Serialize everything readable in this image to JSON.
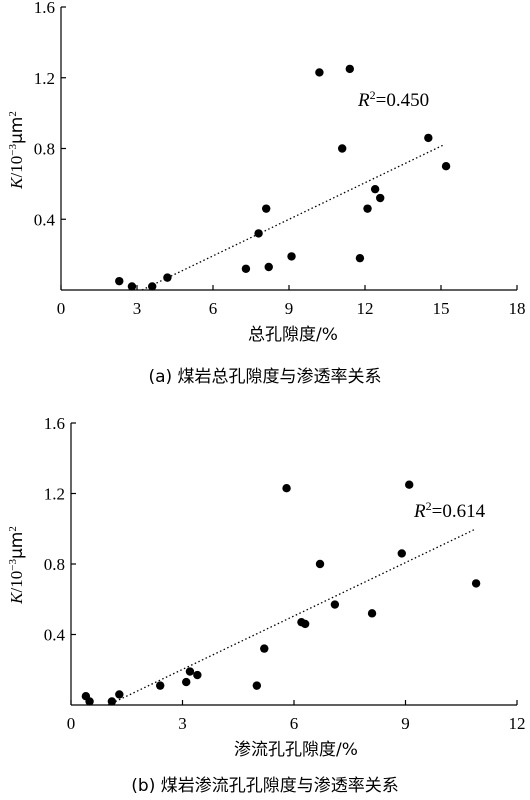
{
  "chart_data": [
    {
      "type": "scatter",
      "title": "",
      "caption": "(a)  煤岩总孔隙度与渗透率关系",
      "xlabel": "总孔隙度/%",
      "ylabel_main": "K",
      "ylabel_unit": "/10",
      "ylabel_exp": "−3",
      "ylabel_unit2": "μm",
      "ylabel_exp2": "2",
      "xlim": [
        0,
        18
      ],
      "ylim": [
        0,
        1.6
      ],
      "xticks": [
        "0",
        "3",
        "6",
        "9",
        "12",
        "15",
        "18"
      ],
      "xtick_values": [
        0,
        3,
        6,
        9,
        12,
        15,
        18
      ],
      "yticks": [
        "0.4",
        "0.8",
        "1.2",
        "1.6"
      ],
      "ytick_values": [
        0.4,
        0.8,
        1.2,
        1.6
      ],
      "r2_prefix": "R",
      "r2_exp": "2",
      "r2_value": "=0.450",
      "trendline": {
        "x": [
          3.2,
          15.1
        ],
        "y": [
          0.0,
          0.82
        ]
      },
      "points": [
        {
          "x": 2.3,
          "y": 0.05
        },
        {
          "x": 2.8,
          "y": 0.02
        },
        {
          "x": 3.6,
          "y": 0.02
        },
        {
          "x": 4.2,
          "y": 0.07
        },
        {
          "x": 7.3,
          "y": 0.12
        },
        {
          "x": 7.8,
          "y": 0.32
        },
        {
          "x": 8.2,
          "y": 0.13
        },
        {
          "x": 8.1,
          "y": 0.46
        },
        {
          "x": 9.1,
          "y": 0.19
        },
        {
          "x": 10.2,
          "y": 1.23
        },
        {
          "x": 11.1,
          "y": 0.8
        },
        {
          "x": 11.4,
          "y": 1.25
        },
        {
          "x": 11.8,
          "y": 0.18
        },
        {
          "x": 12.1,
          "y": 0.46
        },
        {
          "x": 12.4,
          "y": 0.57
        },
        {
          "x": 12.6,
          "y": 0.52
        },
        {
          "x": 14.5,
          "y": 0.86
        },
        {
          "x": 15.2,
          "y": 0.7
        }
      ]
    },
    {
      "type": "scatter",
      "title": "",
      "caption": "(b)  煤岩渗流孔孔隙度与渗透率关系",
      "xlabel": "渗流孔孔隙度/%",
      "ylabel_main": "K",
      "ylabel_unit": "/10",
      "ylabel_exp": "−3",
      "ylabel_unit2": "μm",
      "ylabel_exp2": "2",
      "xlim": [
        0,
        12
      ],
      "ylim": [
        0,
        1.6
      ],
      "xticks": [
        "0",
        "3",
        "6",
        "9",
        "12"
      ],
      "xtick_values": [
        0,
        3,
        6,
        9,
        12
      ],
      "yticks": [
        "0.4",
        "0.8",
        "1.2",
        "1.6"
      ],
      "ytick_values": [
        0.4,
        0.8,
        1.2,
        1.6
      ],
      "r2_prefix": "R",
      "r2_exp": "2",
      "r2_value": "=0.614",
      "trendline": {
        "x": [
          1.0,
          10.9
        ],
        "y": [
          0.0,
          1.0
        ]
      },
      "points": [
        {
          "x": 0.4,
          "y": 0.05
        },
        {
          "x": 0.5,
          "y": 0.02
        },
        {
          "x": 1.1,
          "y": 0.02
        },
        {
          "x": 1.3,
          "y": 0.06
        },
        {
          "x": 2.4,
          "y": 0.11
        },
        {
          "x": 3.1,
          "y": 0.13
        },
        {
          "x": 3.2,
          "y": 0.19
        },
        {
          "x": 3.4,
          "y": 0.17
        },
        {
          "x": 5.0,
          "y": 0.11
        },
        {
          "x": 5.2,
          "y": 0.32
        },
        {
          "x": 5.8,
          "y": 1.23
        },
        {
          "x": 6.2,
          "y": 0.47
        },
        {
          "x": 6.3,
          "y": 0.46
        },
        {
          "x": 6.7,
          "y": 0.8
        },
        {
          "x": 7.1,
          "y": 0.57
        },
        {
          "x": 8.1,
          "y": 0.52
        },
        {
          "x": 8.9,
          "y": 0.86
        },
        {
          "x": 9.1,
          "y": 1.25
        },
        {
          "x": 10.9,
          "y": 0.69
        }
      ]
    }
  ]
}
